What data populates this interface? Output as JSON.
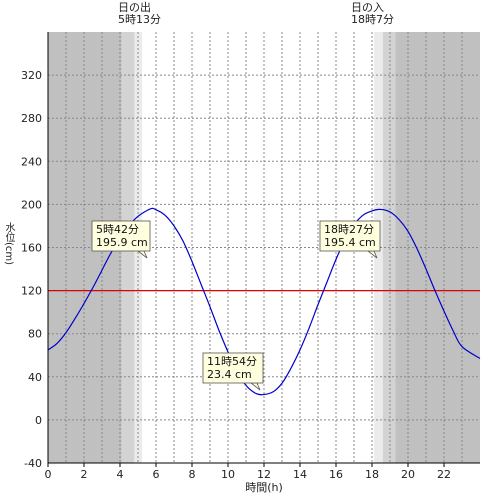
{
  "sunrise": {
    "label": "日の出",
    "time": "5時13分",
    "hour": 5.217
  },
  "sunset": {
    "label": "日の入",
    "time": "18時7分",
    "hour": 18.117
  },
  "chart_data": {
    "type": "line",
    "xlabel": "時間(h)",
    "ylabel": "水位(cm)",
    "xlim": [
      0,
      24
    ],
    "ylim": [
      -40,
      360
    ],
    "x_ticks": [
      0,
      2,
      4,
      6,
      8,
      10,
      12,
      14,
      16,
      18,
      20,
      22
    ],
    "y_ticks": [
      -40,
      0,
      40,
      80,
      120,
      160,
      200,
      240,
      280,
      320
    ],
    "reference_line": {
      "value": 120,
      "color": "#e00000"
    },
    "series": [
      {
        "color": "#0000cc",
        "x": [
          0,
          0.5,
          1,
          1.5,
          2,
          2.5,
          3,
          3.5,
          4,
          4.5,
          5,
          5.7,
          6,
          6.5,
          7,
          7.5,
          8,
          8.5,
          9,
          9.5,
          10,
          10.5,
          11,
          11.5,
          11.9,
          12.5,
          13,
          13.5,
          14,
          14.5,
          15,
          15.5,
          16,
          16.5,
          17,
          17.5,
          18,
          18.45,
          19,
          19.5,
          20,
          20.5,
          21,
          21.5,
          22,
          22.5,
          23,
          24
        ],
        "y": [
          65,
          71,
          81,
          94,
          108,
          123,
          139,
          155,
          168,
          180,
          189,
          195.9,
          195,
          190,
          180,
          166,
          147,
          126,
          105,
          83,
          63,
          45,
          32,
          25,
          23.4,
          26,
          34,
          48,
          65,
          85,
          107,
          128,
          149,
          167,
          181,
          190,
          194,
          195.4,
          193,
          186,
          175,
          159,
          140,
          120,
          101,
          83,
          68,
          57
        ]
      }
    ],
    "annotations": [
      {
        "time": "5時42分",
        "value": "195.9 cm",
        "x": 5.7,
        "y": 195.9
      },
      {
        "time": "11時54分",
        "value": "23.4 cm",
        "x": 11.9,
        "y": 23.4
      },
      {
        "time": "18時27分",
        "value": "195.4 cm",
        "x": 18.45,
        "y": 195.4
      }
    ],
    "shading": [
      {
        "from": 0,
        "to": 4.1,
        "color": "#c0c0c0"
      },
      {
        "from": 4.1,
        "to": 4.8,
        "color": "#d3d3d3"
      },
      {
        "from": 4.8,
        "to": 5.217,
        "color": "#ebebeb"
      },
      {
        "from": 18.117,
        "to": 18.6,
        "color": "#ebebeb"
      },
      {
        "from": 18.6,
        "to": 19.3,
        "color": "#d3d3d3"
      },
      {
        "from": 19.3,
        "to": 24,
        "color": "#c0c0c0"
      }
    ]
  }
}
